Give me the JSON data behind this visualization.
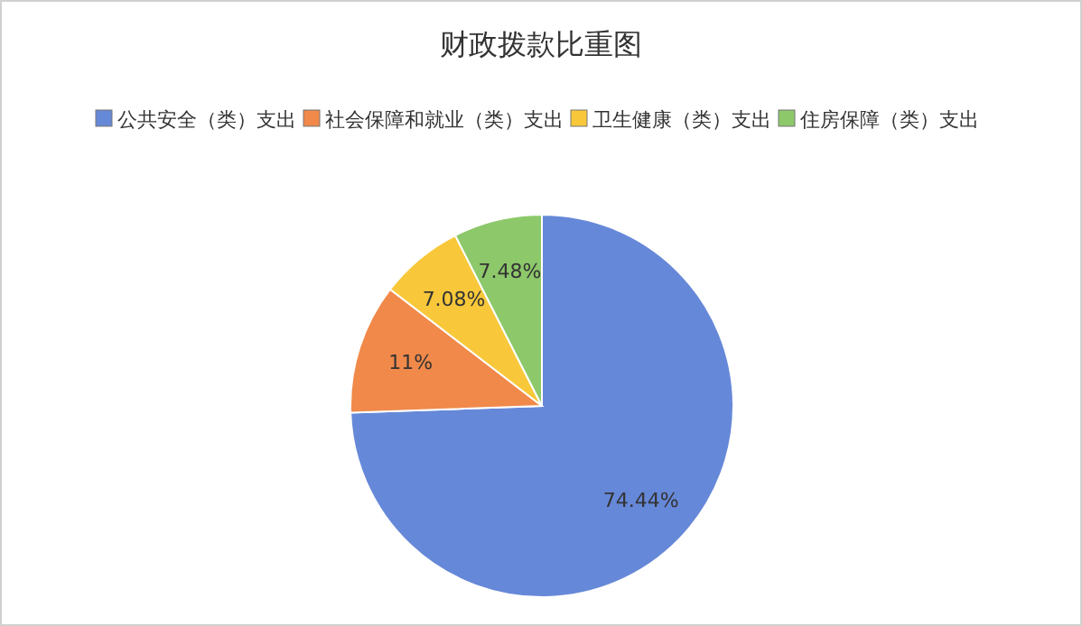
{
  "chart_data": {
    "type": "pie",
    "title": "财政拨款比重图",
    "categories": [
      "公共安全（类）支出",
      "社会保障和就业（类）支出",
      "卫生健康（类）支出",
      "住房保障（类）支出"
    ],
    "values": [
      74.44,
      11,
      7.08,
      7.48
    ],
    "value_labels": [
      "74.44%",
      "11%",
      "7.08%",
      "7.48%"
    ],
    "colors": [
      "#6688d8",
      "#f0894a",
      "#f8c83a",
      "#8dc86a"
    ],
    "legend": "top"
  }
}
